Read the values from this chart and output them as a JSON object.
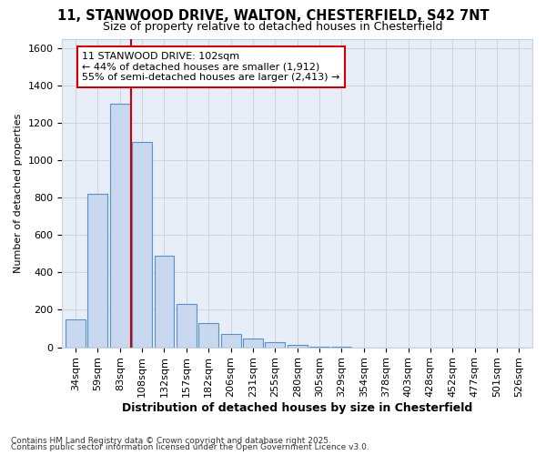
{
  "title": "11, STANWOOD DRIVE, WALTON, CHESTERFIELD, S42 7NT",
  "subtitle": "Size of property relative to detached houses in Chesterfield",
  "xlabel": "Distribution of detached houses by size in Chesterfield",
  "ylabel": "Number of detached properties",
  "categories": [
    "34sqm",
    "59sqm",
    "83sqm",
    "108sqm",
    "132sqm",
    "157sqm",
    "182sqm",
    "206sqm",
    "231sqm",
    "255sqm",
    "280sqm",
    "305sqm",
    "329sqm",
    "354sqm",
    "378sqm",
    "403sqm",
    "428sqm",
    "452sqm",
    "477sqm",
    "501sqm",
    "526sqm"
  ],
  "values": [
    150,
    820,
    1300,
    1100,
    490,
    230,
    130,
    70,
    45,
    25,
    15,
    5,
    3,
    0,
    0,
    0,
    0,
    0,
    0,
    0,
    0
  ],
  "bar_color": "#c8d8ee",
  "bar_edge_color": "#5a90c8",
  "vline_color": "#cc0000",
  "annotation_line1": "11 STANWOOD DRIVE: 102sqm",
  "annotation_line2": "← 44% of detached houses are smaller (1,912)",
  "annotation_line3": "55% of semi-detached houses are larger (2,413) →",
  "annotation_box_facecolor": "#ffffff",
  "annotation_box_edgecolor": "#cc0000",
  "ylim": [
    0,
    1650
  ],
  "yticks": [
    0,
    200,
    400,
    600,
    800,
    1000,
    1200,
    1400,
    1600
  ],
  "footnote1": "Contains HM Land Registry data © Crown copyright and database right 2025.",
  "footnote2": "Contains public sector information licensed under the Open Government Licence v3.0.",
  "fig_bg_color": "#ffffff",
  "plot_bg_color": "#e8eef8",
  "grid_color": "#c8d0dc",
  "title_fontsize": 10.5,
  "subtitle_fontsize": 9,
  "xlabel_fontsize": 9,
  "ylabel_fontsize": 8,
  "tick_fontsize": 8,
  "annot_fontsize": 8,
  "footnote_fontsize": 6.5,
  "vline_xindex": 2
}
